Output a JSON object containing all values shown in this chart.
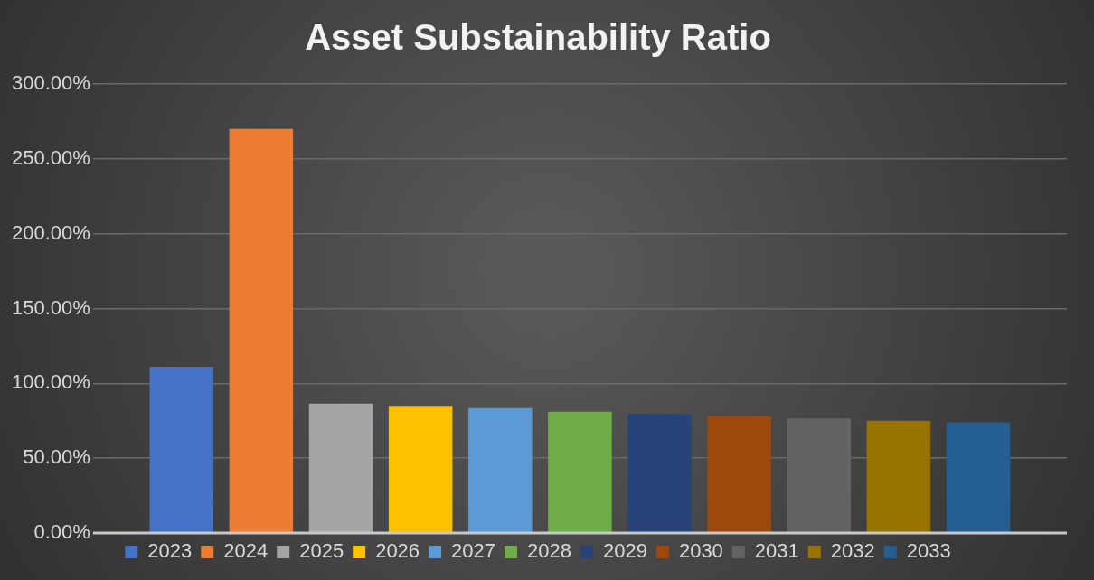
{
  "chart_data": {
    "type": "bar",
    "title": "Asset Substainability Ratio",
    "categories": [
      null
    ],
    "series": [
      {
        "name": "2023",
        "color": "#4472c4",
        "values": [
          111
        ]
      },
      {
        "name": "2024",
        "color": "#ed7d31",
        "values": [
          270
        ]
      },
      {
        "name": "2025",
        "color": "#a5a5a5",
        "values": [
          86.5
        ]
      },
      {
        "name": "2026",
        "color": "#ffc000",
        "values": [
          85
        ]
      },
      {
        "name": "2027",
        "color": "#5b9bd5",
        "values": [
          83.5
        ]
      },
      {
        "name": "2028",
        "color": "#70ad47",
        "values": [
          81
        ]
      },
      {
        "name": "2029",
        "color": "#264478",
        "values": [
          79.5
        ]
      },
      {
        "name": "2030",
        "color": "#9e480e",
        "values": [
          78
        ]
      },
      {
        "name": "2031",
        "color": "#636363",
        "values": [
          76.5
        ]
      },
      {
        "name": "2032",
        "color": "#997300",
        "values": [
          75
        ]
      },
      {
        "name": "2033",
        "color": "#255e91",
        "values": [
          74
        ]
      }
    ],
    "ylim": [
      0,
      300
    ],
    "yticks": [
      {
        "value": 0,
        "label": "0.00%"
      },
      {
        "value": 50,
        "label": "50.00%"
      },
      {
        "value": 100,
        "label": "100.00%"
      },
      {
        "value": 150,
        "label": "150.00%"
      },
      {
        "value": 200,
        "label": "200.00%"
      },
      {
        "value": 250,
        "label": "250.00%"
      },
      {
        "value": 300,
        "label": "300.00%"
      }
    ],
    "grid": "y",
    "legend": "bottom"
  }
}
